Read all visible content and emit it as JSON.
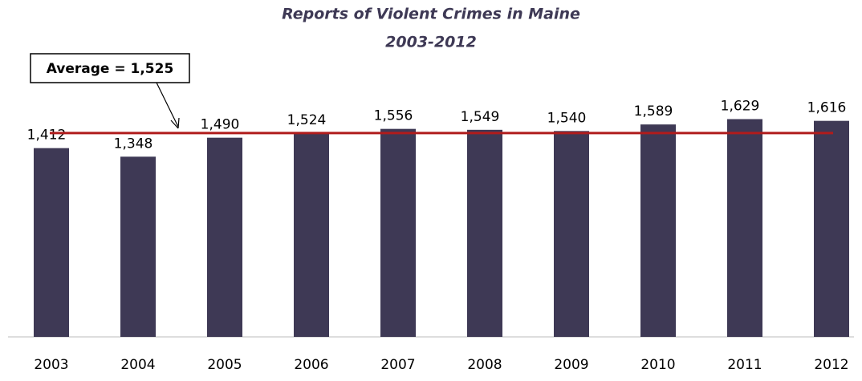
{
  "chart_data": {
    "type": "bar",
    "title": "Reports of Violent Crimes in Maine",
    "subtitle": "2003-2012",
    "categories": [
      "2003",
      "2004",
      "2005",
      "2006",
      "2007",
      "2008",
      "2009",
      "2010",
      "2011",
      "2012"
    ],
    "values": [
      1412,
      1348,
      1490,
      1524,
      1556,
      1549,
      1540,
      1589,
      1629,
      1616
    ],
    "value_labels": [
      "1,412",
      "1,348",
      "1,490",
      "1,524",
      "1,556",
      "1,549",
      "1,540",
      "1,589",
      "1,629",
      "1,616"
    ],
    "color": "#3e3955",
    "average": {
      "value": 1525,
      "label": "Average = 1,525",
      "color": "#b01c1c"
    },
    "ylim": [
      0,
      1800
    ]
  }
}
